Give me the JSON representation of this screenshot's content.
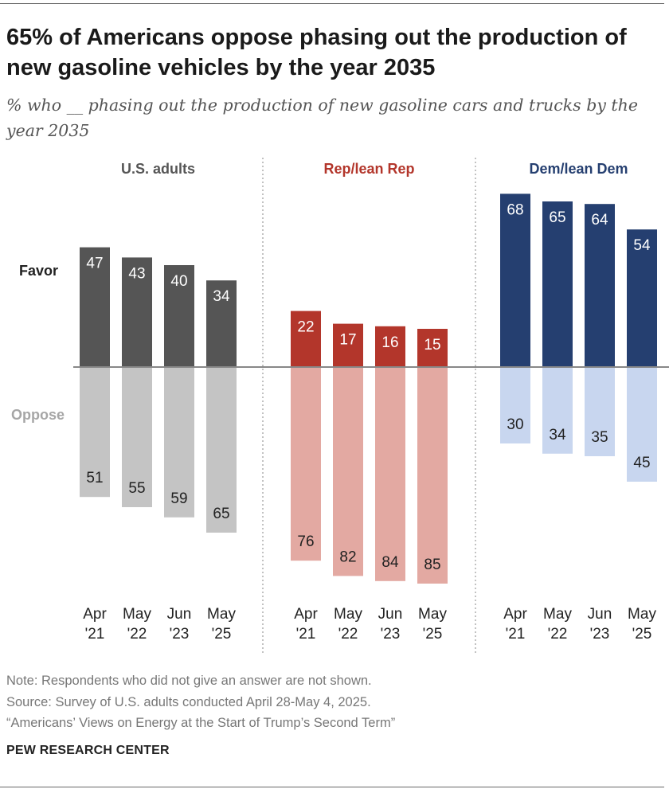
{
  "title": "65% of Americans oppose phasing out the production of new gasoline vehicles by the year 2035",
  "subtitle": "% who __ phasing out the production of new gasoline cars and trucks by the year 2035",
  "notes": {
    "note": "Note: Respondents who did not give an answer are not shown.",
    "source": "Source: Survey of U.S. adults conducted April 28-May 4, 2025.",
    "report": "“Americans’ Views on Energy at the Start of Trump’s Second Term”"
  },
  "brand": "PEW RESEARCH CENTER",
  "chart_data": {
    "type": "bar",
    "layout": "diverging",
    "row_labels": {
      "favor": "Favor",
      "oppose": "Oppose"
    },
    "categories": [
      [
        "Apr",
        "'21"
      ],
      [
        "May",
        "'22"
      ],
      [
        "Jun",
        "'23"
      ],
      [
        "May",
        "'25"
      ]
    ],
    "groups": [
      {
        "name": "U.S. adults",
        "title_color": "#555555",
        "favor_color": "#555555",
        "oppose_color": "#c4c4c4",
        "favor": [
          47,
          43,
          40,
          34
        ],
        "oppose": [
          51,
          55,
          59,
          65
        ]
      },
      {
        "name": "Rep/lean Rep",
        "title_color": "#b3362b",
        "favor_color": "#b3362b",
        "oppose_color": "#e3a9a2",
        "favor": [
          22,
          17,
          16,
          15
        ],
        "oppose": [
          76,
          82,
          84,
          85
        ]
      },
      {
        "name": "Dem/lean Dem",
        "title_color": "#253f70",
        "favor_color": "#253f70",
        "oppose_color": "#c8d6ef",
        "favor": [
          68,
          65,
          64,
          54
        ],
        "oppose": [
          30,
          34,
          35,
          45
        ]
      }
    ]
  }
}
